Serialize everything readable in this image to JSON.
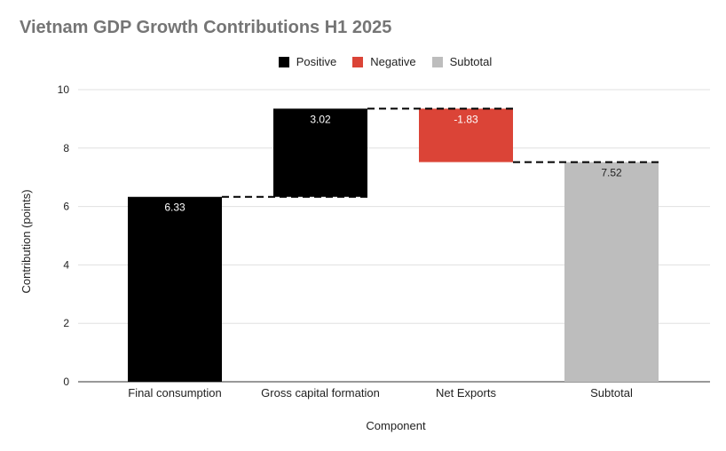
{
  "chart_data": {
    "type": "waterfall",
    "title": "Vietnam GDP Growth Contributions H1 2025",
    "xlabel": "Component",
    "ylabel": "Contribution (points)",
    "ylim": [
      0,
      10
    ],
    "yticks": [
      0,
      2,
      4,
      6,
      8,
      10
    ],
    "grid": true,
    "legend_position": "top",
    "legend": [
      {
        "name": "Positive",
        "color": "#000000"
      },
      {
        "name": "Negative",
        "color": "#db4437"
      },
      {
        "name": "Subtotal",
        "color": "#bdbdbd"
      }
    ],
    "categories": [
      "Final consumption",
      "Gross capital formation",
      "Net Exports",
      "Subtotal"
    ],
    "values": [
      6.33,
      3.02,
      -1.83,
      7.52
    ],
    "kinds": [
      "Positive",
      "Positive",
      "Negative",
      "Subtotal"
    ],
    "labels": [
      "6.33",
      "3.02",
      "-1.83",
      "7.52"
    ]
  }
}
